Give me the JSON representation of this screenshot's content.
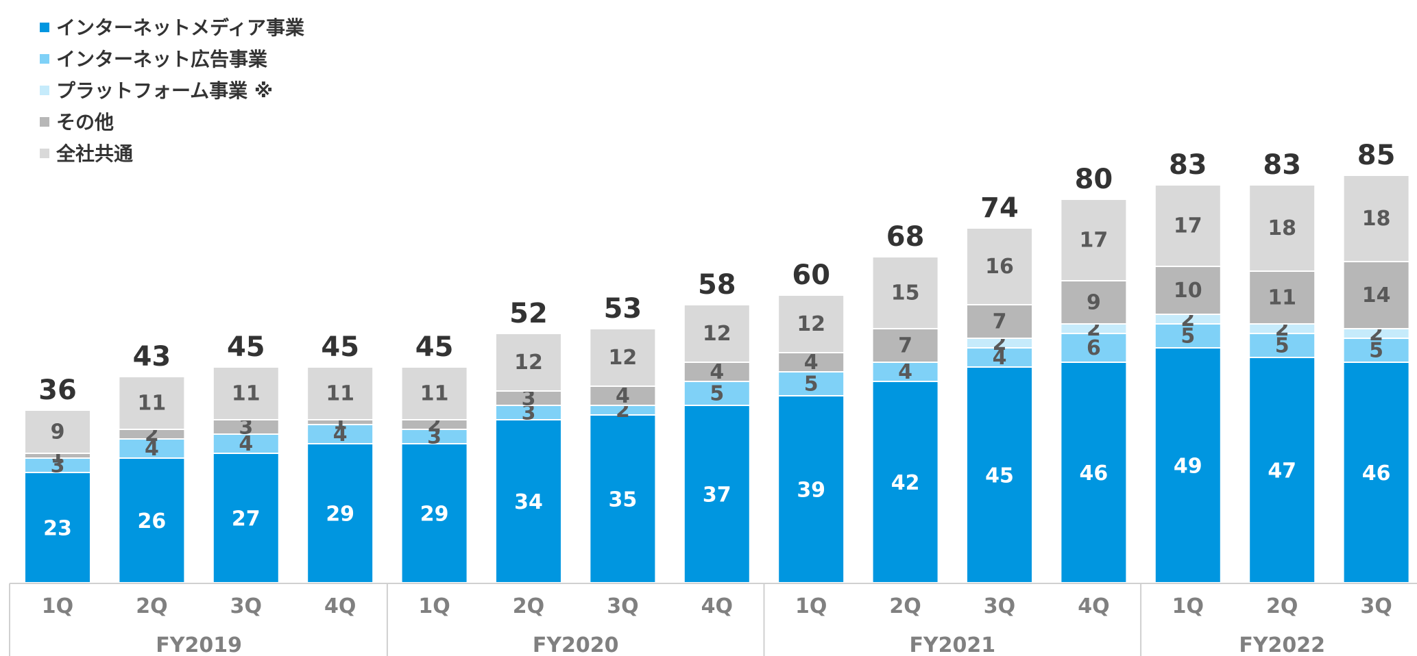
{
  "chart_data": {
    "type": "bar",
    "stacked": true,
    "title": "",
    "xlabel": "",
    "ylabel": "",
    "ylim": [
      0,
      85
    ],
    "grid": false,
    "legend_position": "top-left",
    "categories": [
      "1Q",
      "2Q",
      "3Q",
      "4Q",
      "1Q",
      "2Q",
      "3Q",
      "4Q",
      "1Q",
      "2Q",
      "3Q",
      "4Q",
      "1Q",
      "2Q",
      "3Q"
    ],
    "category_labels": [
      "1Q",
      "2Q",
      "3Q",
      "4Q",
      "1Q",
      "2Q",
      "3Q",
      "4Q",
      "1Q",
      "2Q",
      "3Q",
      "4Q",
      "1Q",
      "2Q",
      "3Q"
    ],
    "fiscal_years": [
      {
        "label": "FY2019",
        "start": 0,
        "end": 3
      },
      {
        "label": "FY2020",
        "start": 4,
        "end": 7
      },
      {
        "label": "FY2021",
        "start": 8,
        "end": 11
      },
      {
        "label": "FY2022",
        "start": 12,
        "end": 14
      }
    ],
    "series": [
      {
        "name": "インターネットメディア事業",
        "color": "#0096e0",
        "label_color": "#ffffff",
        "values": [
          23,
          26,
          27,
          29,
          29,
          34,
          35,
          37,
          39,
          42,
          45,
          46,
          49,
          47,
          46
        ]
      },
      {
        "name": "インターネット広告事業",
        "color": "#7fd1f7",
        "label_color": "#595959",
        "values": [
          3,
          4,
          4,
          4,
          3,
          3,
          2,
          5,
          5,
          4,
          4,
          6,
          5,
          5,
          5
        ]
      },
      {
        "name": "プラットフォーム事業 ※",
        "color": "#c6ebfb",
        "label_color": "#595959",
        "values": [
          0,
          0,
          0,
          0,
          0,
          0,
          0,
          0,
          0,
          0,
          2,
          2,
          2,
          2,
          2
        ]
      },
      {
        "name": "その他",
        "color": "#b7b7b7",
        "label_color": "#595959",
        "values": [
          1,
          2,
          3,
          1,
          2,
          3,
          4,
          4,
          4,
          7,
          7,
          9,
          10,
          11,
          14
        ]
      },
      {
        "name": "全社共通",
        "color": "#d9d9d9",
        "label_color": "#595959",
        "values": [
          9,
          11,
          11,
          11,
          11,
          12,
          12,
          12,
          12,
          15,
          16,
          17,
          17,
          18,
          18
        ]
      }
    ],
    "totals": [
      36,
      43,
      45,
      45,
      45,
      52,
      53,
      58,
      60,
      68,
      74,
      80,
      83,
      83,
      85
    ]
  }
}
